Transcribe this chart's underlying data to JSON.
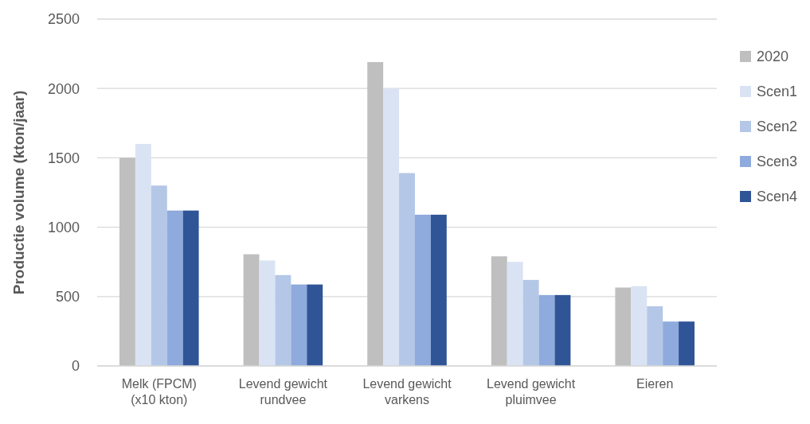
{
  "chart_data": {
    "type": "bar",
    "ylabel": "Productie volume (kton/jaar)",
    "categories": [
      "Melk (FPCM) (x10 kton)",
      "Levend gewicht rundvee",
      "Levend gewicht varkens",
      "Levend gewicht pluimvee",
      "Eieren"
    ],
    "series": [
      {
        "name": "2020",
        "color": "#bfbfbf",
        "values": [
          1500,
          805,
          2190,
          790,
          565
        ]
      },
      {
        "name": "Scen1",
        "color": "#dae3f3",
        "values": [
          1600,
          760,
          2000,
          750,
          575
        ]
      },
      {
        "name": "Scen2",
        "color": "#b4c7e7",
        "values": [
          1300,
          655,
          1390,
          620,
          430
        ]
      },
      {
        "name": "Scen3",
        "color": "#8faadc",
        "values": [
          1120,
          587,
          1090,
          511,
          320
        ]
      },
      {
        "name": "Scen4",
        "color": "#2f5597",
        "values": [
          1120,
          587,
          1090,
          511,
          320
        ]
      }
    ],
    "ylim": [
      0,
      2500
    ],
    "yticks": [
      0,
      500,
      1000,
      1500,
      2000,
      2500
    ],
    "grid": "y",
    "legend": "right"
  }
}
